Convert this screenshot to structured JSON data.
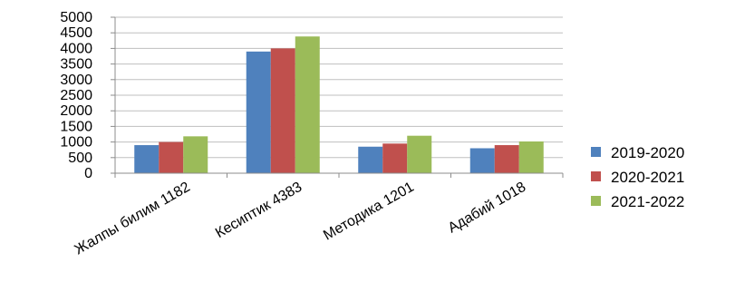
{
  "chart_data": {
    "type": "bar",
    "title": "",
    "xlabel": "",
    "ylabel": "",
    "categories": [
      "Жалпы билим 1182",
      "Кесиптик 4383",
      "Методика 1201",
      "Адабий 1018"
    ],
    "series": [
      {
        "name": "2019-2020",
        "color": "#4f81bd",
        "values": [
          900,
          3900,
          850,
          800
        ]
      },
      {
        "name": "2020-2021",
        "color": "#c0504d",
        "values": [
          1000,
          4000,
          950,
          900
        ]
      },
      {
        "name": "2021-2022",
        "color": "#9bbb59",
        "values": [
          1182,
          4383,
          1201,
          1018
        ]
      }
    ],
    "ylim": [
      0,
      5000
    ],
    "yticks": [
      0,
      500,
      1000,
      1500,
      2000,
      2500,
      3000,
      3500,
      4000,
      4500,
      5000
    ],
    "grid": true,
    "legend": "right"
  }
}
